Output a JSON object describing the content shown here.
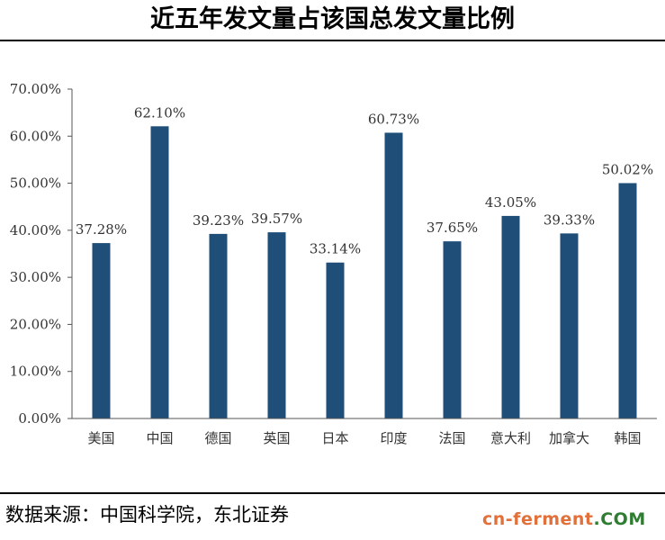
{
  "title": "近五年发文量占该国总发文量比例",
  "source": "数据来源：中国科学院，东北证券",
  "watermark": {
    "text": "cn-ferment",
    "suffix": ".COM",
    "color": "#e2703a"
  },
  "chart_data": {
    "type": "bar",
    "title": "近五年发文量占该国总发文量比例",
    "categories": [
      "美国",
      "中国",
      "德国",
      "英国",
      "日本",
      "印度",
      "法国",
      "意大利",
      "加拿大",
      "韩国"
    ],
    "values": [
      37.28,
      62.1,
      39.23,
      39.57,
      33.14,
      60.73,
      37.65,
      43.05,
      39.33,
      50.02
    ],
    "data_labels": [
      "37.28%",
      "62.10%",
      "39.23%",
      "39.57%",
      "33.14%",
      "60.73%",
      "37.65%",
      "43.05%",
      "39.33%",
      "50.02%"
    ],
    "yticks": [
      "0.00%",
      "10.00%",
      "20.00%",
      "30.00%",
      "40.00%",
      "50.00%",
      "60.00%",
      "70.00%"
    ],
    "ylim": [
      0,
      70
    ],
    "xlabel": "",
    "ylabel": "",
    "grid": false,
    "bar_color": "#1f4e79"
  }
}
